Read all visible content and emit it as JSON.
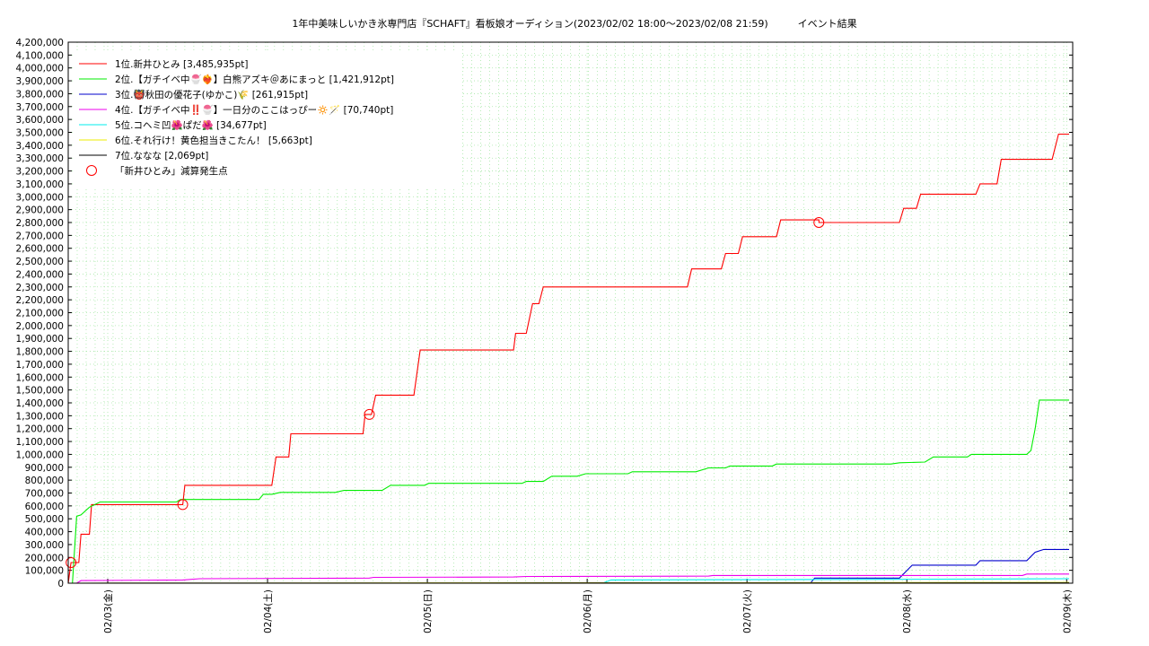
{
  "chart_data": {
    "type": "line",
    "title": "1年中美味しいかき氷専門店『SCHAFT』看板娘オーディション(2023/02/02 18:00〜2023/02/08 21:59)　　　イベント結果",
    "xlabel": "",
    "ylabel": "",
    "ylim": [
      0,
      4200000
    ],
    "ytick_step": 100000,
    "xlim": [
      "2023-02-02 18:00",
      "2023-02-09 00:00"
    ],
    "x_tick_labels": [
      "02/03(金)",
      "02/04(土)",
      "02/05(日)",
      "02/06(月)",
      "02/07(火)",
      "02/08(水)",
      "02/09(木)"
    ],
    "grid": true,
    "legend_position": "top-left",
    "series": [
      {
        "name": "1位.新井ひとみ [3,485,935pt]",
        "color": "#ff0000",
        "points": [
          [
            "02/02 18:00",
            0
          ],
          [
            "02/02 18:40",
            160000
          ],
          [
            "02/02 20:30",
            160000
          ],
          [
            "02/02 21:00",
            380000
          ],
          [
            "02/02 23:00",
            380000
          ],
          [
            "02/02 23:30",
            610000
          ],
          [
            "02/03 21:00",
            610000
          ],
          [
            "02/03 21:30",
            760000
          ],
          [
            "02/04 18:00",
            760000
          ],
          [
            "02/04 19:00",
            980000
          ],
          [
            "02/04 22:00",
            980000
          ],
          [
            "02/04 22:30",
            1160000
          ],
          [
            "02/05 15:30",
            1160000
          ],
          [
            "02/05 16:00",
            1310000
          ],
          [
            "02/05 17:30",
            1310000
          ],
          [
            "02/05 18:30",
            1460000
          ],
          [
            "02/06 03:30",
            1460000
          ],
          [
            "02/06 05:00",
            1810000
          ],
          [
            "02/07 03:00",
            1810000
          ],
          [
            "02/07 03:30",
            1940000
          ],
          [
            "02/07 06:00",
            1940000
          ],
          [
            "02/07 07:30",
            2170000
          ],
          [
            "02/07 09:00",
            2170000
          ],
          [
            "02/07 10:00",
            2300000
          ],
          [
            "02/08 20:00",
            2300000
          ],
          [
            "02/08 21:00",
            2440000
          ],
          [
            "02/09 04:00",
            2440000
          ],
          [
            "02/09 05:00",
            2560000
          ],
          [
            "02/09 08:00",
            2560000
          ],
          [
            "02/09 09:00",
            2690000
          ],
          [
            "02/09 17:00",
            2690000
          ],
          [
            "02/09 18:00",
            2820000
          ],
          [
            "02/10 03:00",
            2820000
          ],
          [
            "02/10 03:00",
            2800000
          ],
          [
            "02/10 22:00",
            2800000
          ],
          [
            "02/10 23:00",
            2910000
          ],
          [
            "02/11 02:00",
            2910000
          ],
          [
            "02/11 03:00",
            3020000
          ],
          [
            "02/11 16:00",
            3020000
          ],
          [
            "02/11 17:00",
            3100000
          ],
          [
            "02/11 21:00",
            3100000
          ],
          [
            "02/11 22:00",
            3290000
          ],
          [
            "02/12 10:00",
            3290000
          ],
          [
            "02/12 11:30",
            3485935
          ],
          [
            "02/12 14:00",
            3485935
          ]
        ]
      },
      {
        "name": "2位.【ガチイベ中🍧❤️‍🔥】白熊アズキ＠あにまっと [1,421,912pt]",
        "color": "#00ee00",
        "points": [
          [
            "02/02 18:00",
            0
          ],
          [
            "02/02 19:00",
            0
          ],
          [
            "02/02 20:00",
            520000
          ],
          [
            "02/02 21:00",
            530000
          ],
          [
            "02/02 23:00",
            590000
          ],
          [
            "02/03 01:30",
            630000
          ],
          [
            "02/03 19:30",
            630000
          ],
          [
            "02/03 20:30",
            650000
          ],
          [
            "02/04 15:00",
            650000
          ],
          [
            "02/04 16:00",
            690000
          ],
          [
            "02/04 18:00",
            690000
          ],
          [
            "02/04 20:00",
            705000
          ],
          [
            "02/05 09:00",
            705000
          ],
          [
            "02/05 11:00",
            720000
          ],
          [
            "02/05 20:00",
            720000
          ],
          [
            "02/05 22:00",
            760000
          ],
          [
            "02/06 06:00",
            760000
          ],
          [
            "02/06 07:00",
            775000
          ],
          [
            "02/07 05:00",
            775000
          ],
          [
            "02/07 06:00",
            790000
          ],
          [
            "02/07 10:00",
            790000
          ],
          [
            "02/07 12:00",
            830000
          ],
          [
            "02/07 18:00",
            830000
          ],
          [
            "02/07 20:00",
            850000
          ],
          [
            "02/08 06:00",
            850000
          ],
          [
            "02/08 07:00",
            865000
          ],
          [
            "02/08 22:00",
            865000
          ],
          [
            "02/09 01:00",
            895000
          ],
          [
            "02/09 05:00",
            895000
          ],
          [
            "02/09 06:00",
            910000
          ],
          [
            "02/09 16:00",
            910000
          ],
          [
            "02/09 17:00",
            925000
          ],
          [
            "02/10 20:00",
            925000
          ],
          [
            "02/10 22:00",
            935000
          ],
          [
            "02/11 04:00",
            940000
          ],
          [
            "02/11 06:00",
            980000
          ],
          [
            "02/11 14:00",
            980000
          ],
          [
            "02/11 15:00",
            1000000
          ],
          [
            "02/12 04:00",
            1000000
          ],
          [
            "02/12 05:00",
            1030000
          ],
          [
            "02/12 06:00",
            1200000
          ],
          [
            "02/12 07:00",
            1421912
          ],
          [
            "02/12 14:00",
            1421912
          ]
        ]
      },
      {
        "name": "3位.👹秋田の優花子(ゆかこ)🌾 [261,915pt]",
        "color": "#0000cc",
        "points": [
          [
            "02/02 18:00",
            0
          ],
          [
            "02/10 01:00",
            0
          ],
          [
            "02/10 02:00",
            40000
          ],
          [
            "02/10 22:00",
            40000
          ],
          [
            "02/11 01:00",
            140000
          ],
          [
            "02/11 16:00",
            140000
          ],
          [
            "02/11 17:00",
            175000
          ],
          [
            "02/12 04:00",
            175000
          ],
          [
            "02/12 06:00",
            240000
          ],
          [
            "02/12 08:00",
            261915
          ],
          [
            "02/12 14:00",
            261915
          ]
        ]
      },
      {
        "name": "4位.【ガチイベ中‼️🍧】一日分のここはっぴー🔅🪄 [70,740pt]",
        "color": "#ee00ee",
        "points": [
          [
            "02/02 18:00",
            0
          ],
          [
            "02/02 20:00",
            0
          ],
          [
            "02/02 21:00",
            20000
          ],
          [
            "02/03 21:00",
            25000
          ],
          [
            "02/04 01:00",
            35000
          ],
          [
            "02/05 17:00",
            40000
          ],
          [
            "02/05 18:00",
            45000
          ],
          [
            "02/07 03:00",
            48000
          ],
          [
            "02/07 06:00",
            52000
          ],
          [
            "02/09 01:00",
            55000
          ],
          [
            "02/09 02:00",
            60000
          ],
          [
            "02/12 03:00",
            60000
          ],
          [
            "02/12 04:00",
            70740
          ],
          [
            "02/12 14:00",
            70740
          ]
        ]
      },
      {
        "name": "5位.コヘミ凹🌺ぱだ🌺 [34,677pt]",
        "color": "#00eeee",
        "points": [
          [
            "02/02 18:00",
            0
          ],
          [
            "02/08 00:00",
            0
          ],
          [
            "02/08 02:00",
            25000
          ],
          [
            "02/10 20:00",
            30000
          ],
          [
            "02/12 14:00",
            34677
          ]
        ]
      },
      {
        "name": "6位.それ行け！黄色担当きこたん！ [5,663pt]",
        "color": "#eeee00",
        "points": [
          [
            "02/02 18:00",
            0
          ],
          [
            "02/06 08:00",
            2000
          ],
          [
            "02/12 14:00",
            5663
          ]
        ]
      },
      {
        "name": "7位.ななな [2,069pt]",
        "color": "#000000",
        "points": [
          [
            "02/02 18:00",
            0
          ],
          [
            "02/12 14:00",
            2069
          ]
        ]
      }
    ],
    "markers": {
      "name": "「新井ひとみ」減算発生点",
      "color": "#ff0000",
      "points": [
        [
          "02/02 18:40",
          160000
        ],
        [
          "02/03 21:00",
          610000
        ],
        [
          "02/05 17:00",
          1310000
        ],
        [
          "02/10 03:00",
          2800000
        ]
      ]
    }
  }
}
